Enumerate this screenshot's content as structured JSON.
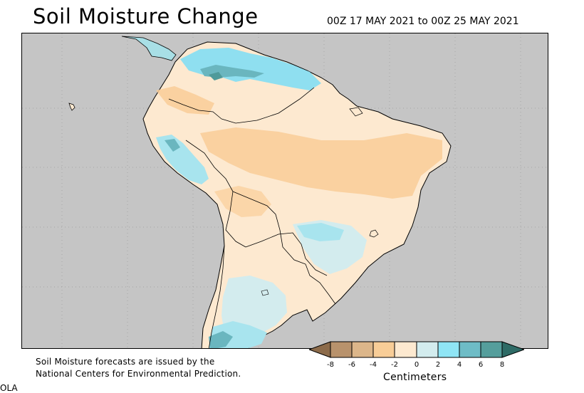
{
  "header": {
    "title": "Soil Moisture Change",
    "date_range": "00Z 17 MAY 2021 to 00Z 25 MAY 2021"
  },
  "map": {
    "region": "South America",
    "ocean_color": "#c5c5c5",
    "land_base_color": "#fde9d0",
    "drying_color": "#f9cd98",
    "wetting_light_color": "#d3ecee",
    "wetting_medium_color": "#8fdff0",
    "wetting_strong_color": "#6ab6bf",
    "wetting_max_color": "#4f9a9a"
  },
  "footnote": {
    "line1": "Soil Moisture forecasts are issued by the",
    "line2": "National Centers for Environmental Prediction."
  },
  "corner_tag": "OLA",
  "legend": {
    "unit": "Centimeters",
    "ticks": [
      "-8",
      "-6",
      "-4",
      "-2",
      "0",
      "2",
      "4",
      "6",
      "8"
    ],
    "bins": [
      {
        "range": "< -8",
        "color": "#8c6b4a"
      },
      {
        "range": "-8 to -6",
        "color": "#b8926c"
      },
      {
        "range": "-6 to -4",
        "color": "#dcb68a"
      },
      {
        "range": "-4 to -2",
        "color": "#f8cd97"
      },
      {
        "range": "-2 to 0",
        "color": "#fde9d0"
      },
      {
        "range": "0 to 2",
        "color": "#d3ecee"
      },
      {
        "range": "2 to 4",
        "color": "#8fe5f5"
      },
      {
        "range": "4 to 6",
        "color": "#6ebcc6"
      },
      {
        "range": "6 to 8",
        "color": "#559e9c"
      },
      {
        "range": "> 8",
        "color": "#2e6b66"
      }
    ]
  }
}
